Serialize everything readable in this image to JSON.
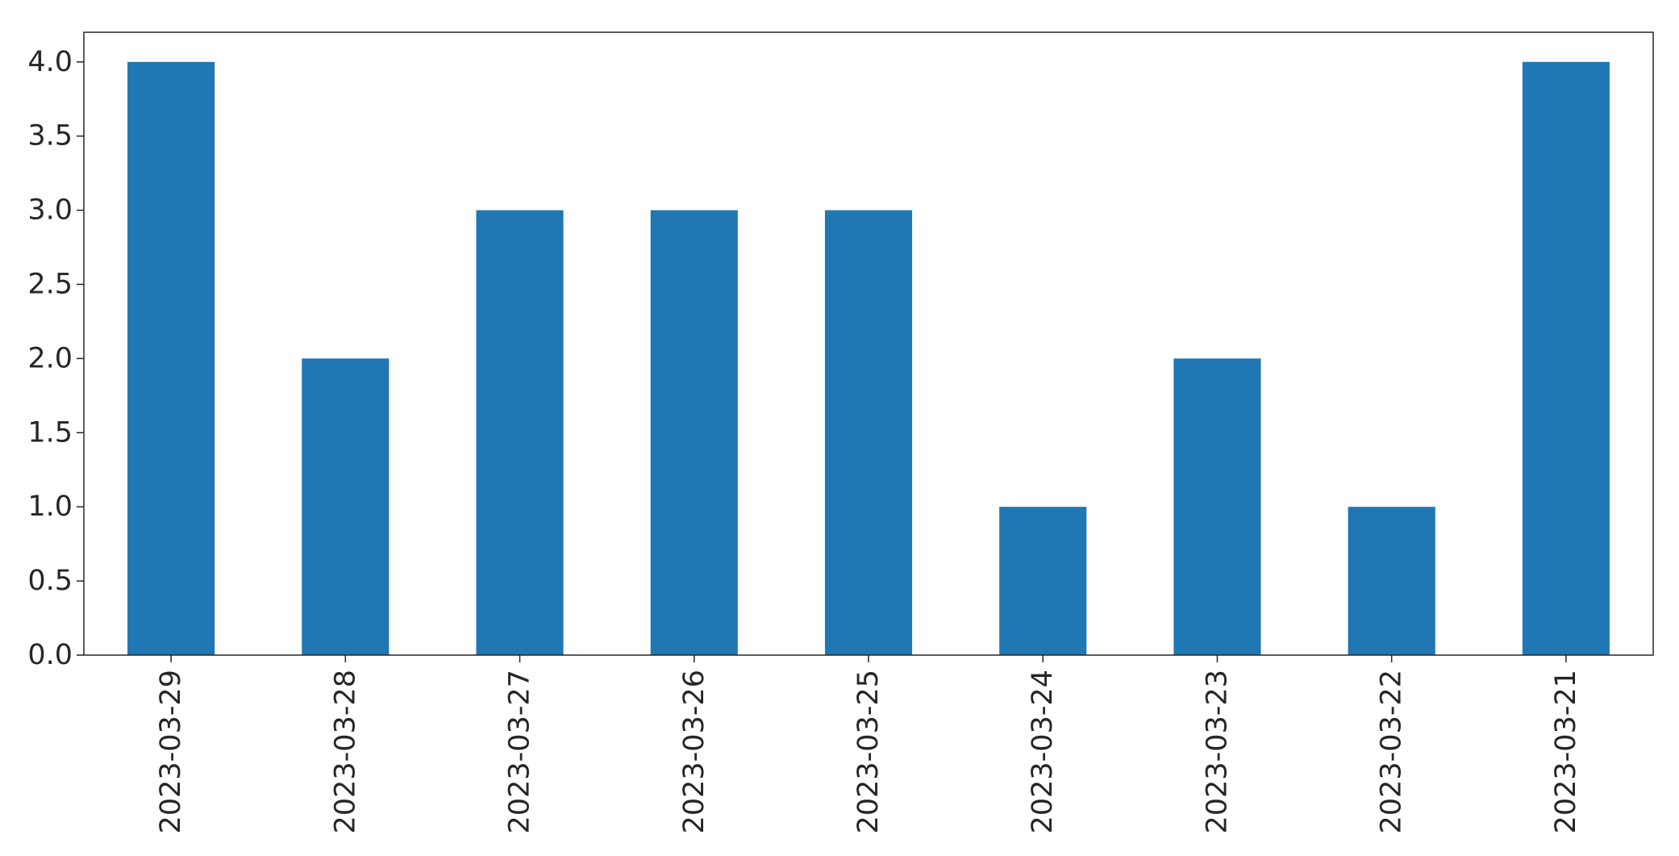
{
  "chart_data": {
    "type": "bar",
    "title": "",
    "xlabel": "",
    "ylabel": "",
    "categories": [
      "2023-03-29",
      "2023-03-28",
      "2023-03-27",
      "2023-03-26",
      "2023-03-25",
      "2023-03-24",
      "2023-03-23",
      "2023-03-22",
      "2023-03-21"
    ],
    "values": [
      4,
      2,
      3,
      3,
      3,
      1,
      2,
      1,
      4
    ],
    "ylim": [
      0,
      4.2
    ],
    "yticks": [
      "0.0",
      "0.5",
      "1.0",
      "1.5",
      "2.0",
      "2.5",
      "3.0",
      "3.5",
      "4.0"
    ],
    "bar_color": "#1f77b4",
    "grid": false,
    "legend": "none"
  }
}
